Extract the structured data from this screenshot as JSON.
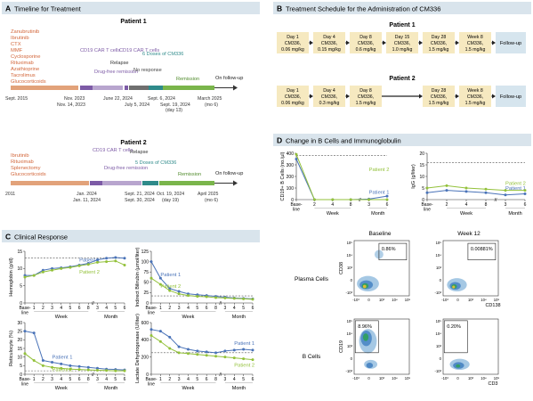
{
  "colors": {
    "panel_header_bg": "#d9e4ec",
    "patient1": "#4a73b8",
    "patient2": "#93c13a",
    "drug_text": "#d2663a",
    "salmon_bar": "#e2a27a",
    "purple": "#7d5ba6",
    "teal": "#2e8a8a",
    "gray_bar": "#6f6f6f",
    "remission_green": "#7ab54b",
    "followup_box": "#d6e5ee",
    "day_box": "#f6e9c0"
  },
  "panelA": {
    "letter": "A",
    "title": "Timeline for Treatment",
    "patient1": {
      "heading": "Patient 1",
      "drugs": [
        "Zanubrutinib",
        "Ibrutinib",
        "CTX",
        "MMF",
        "Cyclosporine",
        "Rituximab",
        "Azathioprine",
        "Tacrolimus",
        "Glucocorticoids"
      ],
      "labels": [
        "CD19 CAR T cells",
        "Drug-free remission",
        "Relapse",
        "CD19 CAR T cells",
        "No response",
        "6 Doses of CM336",
        "Remission",
        "On follow-up"
      ],
      "dates": [
        "Sept. 2015",
        "Nov. 2023",
        "Nov. 14, 2023",
        "June 22, 2024",
        "July 5, 2024",
        "Sept. 6, 2024",
        "Sept. 19, 2024",
        "(day 13)",
        "March 2025",
        "(mo 6)"
      ]
    },
    "patient2": {
      "heading": "Patient 2",
      "drugs": [
        "Ibrutinib",
        "Rituximab",
        "Splenectomy",
        "Glucocorticoids"
      ],
      "labels": [
        "CD19 CAR T cells",
        "Drug-free remission",
        "Relapse",
        "5 Doses of CM336",
        "Remission",
        "On follow-up"
      ],
      "dates": [
        "2011",
        "Jan. 2024",
        "Jan. 11, 2024",
        "Sept. 21, 2024",
        "Sept. 30, 2024",
        "Oct. 19, 2024",
        "(day 19)",
        "April 2025",
        "(mo 6)"
      ]
    }
  },
  "panelB": {
    "letter": "B",
    "title": "Treatment Schedule for the Administration of CM336",
    "patient1": {
      "heading": "Patient 1",
      "boxes": [
        {
          "day": "Day 1",
          "drug": "CM336,",
          "dose": "0.06 mg/kg"
        },
        {
          "day": "Day 4",
          "drug": "CM336,",
          "dose": "0.15 mg/kg"
        },
        {
          "day": "Day 8",
          "drug": "CM336,",
          "dose": "0.6 mg/kg"
        },
        {
          "day": "Day 15",
          "drug": "CM336,",
          "dose": "1.0 mg/kg"
        },
        {
          "day": "Day 28",
          "drug": "CM336,",
          "dose": "1.5 mg/kg"
        },
        {
          "day": "Week 8",
          "drug": "CM336,",
          "dose": "1.5 mg/kg"
        }
      ],
      "followup": "Follow-up"
    },
    "patient2": {
      "heading": "Patient 2",
      "boxes": [
        {
          "day": "Day 1",
          "drug": "CM336,",
          "dose": "0.06 mg/kg"
        },
        {
          "day": "Day 4",
          "drug": "CM336,",
          "dose": "0.3 mg/kg"
        },
        {
          "day": "Day 8",
          "drug": "CM336,",
          "dose": "1.5 mg/kg"
        },
        {
          "day": "Day 28",
          "drug": "CM336,",
          "dose": "1.5 mg/kg"
        },
        {
          "day": "Week 8",
          "drug": "CM336,",
          "dose": "1.5 mg/kg"
        }
      ],
      "followup": "Follow-up"
    }
  },
  "panelC": {
    "letter": "C",
    "title": "Clinical Response",
    "xticks": [
      "Base-line",
      "1",
      "2",
      "3",
      "4",
      "5",
      "6",
      "8",
      "3",
      "4",
      "5",
      "6"
    ],
    "xlabel_week": "Week",
    "xlabel_month": "Month"
  },
  "panelD": {
    "letter": "D",
    "title": "Change in B Cells and Immunoglobulin",
    "flow": {
      "col_baseline": "Baseline",
      "col_week12": "Week 12",
      "row_plasma": "Plasma Cells",
      "row_bcells": "B Cells",
      "pct_plasma_baseline": "0.86%",
      "pct_plasma_week12": "0.00881%",
      "pct_b_baseline": "8.96%",
      "pct_b_week12": "0.20%",
      "ylabel_plasma": "CD38",
      "xlabel_plasma": "CD138",
      "ylabel_b": "CD19",
      "xlabel_b": "CD3",
      "ticks_plasma": [
        "10⁵",
        "10⁴",
        "10³",
        "0",
        "-10³",
        "-10³",
        "0",
        "10³",
        "10⁴",
        "10⁵"
      ],
      "ticks_b": [
        "10⁵",
        "10⁴",
        "10³",
        "0",
        "-10³",
        "-10³",
        "0",
        "10³",
        "10⁴",
        "10⁵"
      ]
    }
  },
  "chart_data": [
    {
      "type": "line",
      "title": "",
      "ylabel": "Hemoglobin (g/dl)",
      "ylim": [
        0,
        15
      ],
      "yticks": [
        0,
        5,
        10,
        15
      ],
      "reference_line": 13,
      "x": [
        0,
        1,
        2,
        3,
        4,
        5,
        6,
        8,
        12,
        16,
        20,
        24
      ],
      "series": [
        {
          "name": "Patient 1",
          "values": [
            8,
            8,
            9.5,
            10,
            10.2,
            10.5,
            11,
            11.5,
            12.5,
            13,
            13.2,
            13
          ]
        },
        {
          "name": "Patient 2",
          "values": [
            7.5,
            8,
            9,
            9.5,
            10,
            10.3,
            10.8,
            11.2,
            11.8,
            12,
            12.2,
            11
          ]
        }
      ]
    },
    {
      "type": "line",
      "title": "",
      "ylabel": "Indirect Bilirubin (µmol/liter)",
      "ylim": [
        0,
        125
      ],
      "yticks": [
        0,
        25,
        50,
        75,
        100,
        125
      ],
      "reference_line": 17,
      "x": [
        0,
        1,
        2,
        3,
        4,
        5,
        6,
        8,
        12,
        16,
        20,
        24
      ],
      "series": [
        {
          "name": "Patient 1",
          "values": [
            100,
            60,
            35,
            28,
            22,
            20,
            18,
            16,
            14,
            12,
            11,
            10
          ]
        },
        {
          "name": "Patient 2",
          "values": [
            60,
            45,
            30,
            22,
            18,
            16,
            15,
            13,
            12,
            11,
            10,
            9
          ]
        }
      ]
    },
    {
      "type": "line",
      "title": "",
      "ylabel": "Reticulocyte (%)",
      "ylim": [
        0,
        30
      ],
      "yticks": [
        0,
        5,
        10,
        15,
        20,
        25,
        30
      ],
      "reference_line": 2,
      "x": [
        0,
        1,
        2,
        3,
        4,
        5,
        6,
        8,
        12,
        16,
        20,
        24
      ],
      "series": [
        {
          "name": "Patient 1",
          "values": [
            25,
            24,
            8,
            7,
            6,
            5,
            4.5,
            4,
            3.5,
            3,
            2.8,
            2.5
          ]
        },
        {
          "name": "Patient 2",
          "values": [
            12,
            8,
            5,
            4,
            3.5,
            3,
            2.8,
            2.5,
            2.3,
            2.2,
            2,
            2
          ]
        }
      ]
    },
    {
      "type": "line",
      "title": "",
      "ylabel": "Lactate Dehydrogenase (U/liter)",
      "ylim": [
        0,
        600
      ],
      "yticks": [
        0,
        200,
        400,
        600
      ],
      "reference_line": 250,
      "x": [
        0,
        1,
        2,
        3,
        4,
        5,
        6,
        8,
        12,
        16,
        20,
        24
      ],
      "series": [
        {
          "name": "Patient 1",
          "values": [
            520,
            500,
            430,
            320,
            290,
            270,
            260,
            250,
            270,
            280,
            290,
            280
          ]
        },
        {
          "name": "Patient 2",
          "values": [
            450,
            380,
            300,
            250,
            240,
            230,
            220,
            210,
            200,
            190,
            180,
            170
          ]
        }
      ]
    },
    {
      "type": "line",
      "title": "",
      "ylabel": "CD19+ B Cells (no./µl)",
      "ylim": [
        0,
        400
      ],
      "yticks": [
        0,
        100,
        200,
        300,
        400
      ],
      "reference_line": 380,
      "xticks": [
        "Base-line",
        "2",
        "4",
        "8",
        "3",
        "6"
      ],
      "xlabels": [
        "Week",
        "Month"
      ],
      "x": [
        0,
        2,
        4,
        8,
        12,
        24
      ],
      "series": [
        {
          "name": "Patient 1",
          "values": [
            350,
            0,
            0,
            0,
            5,
            30
          ]
        },
        {
          "name": "Patient 2",
          "values": [
            390,
            0,
            0,
            0,
            0,
            0
          ]
        }
      ]
    },
    {
      "type": "line",
      "title": "",
      "ylabel": "IgG (g/liter)",
      "ylim": [
        0,
        20
      ],
      "yticks": [
        0,
        5,
        10,
        15,
        20
      ],
      "reference_line": 16,
      "xticks": [
        "Base-line",
        "2",
        "4",
        "8",
        "3",
        "6"
      ],
      "xlabels": [
        "Week",
        "Month"
      ],
      "x": [
        0,
        2,
        4,
        8,
        12,
        24
      ],
      "series": [
        {
          "name": "Patient 1",
          "values": [
            3,
            4,
            3.5,
            3,
            2,
            2.5
          ]
        },
        {
          "name": "Patient 2",
          "values": [
            5,
            6,
            5,
            4.5,
            4,
            4
          ]
        }
      ]
    }
  ]
}
